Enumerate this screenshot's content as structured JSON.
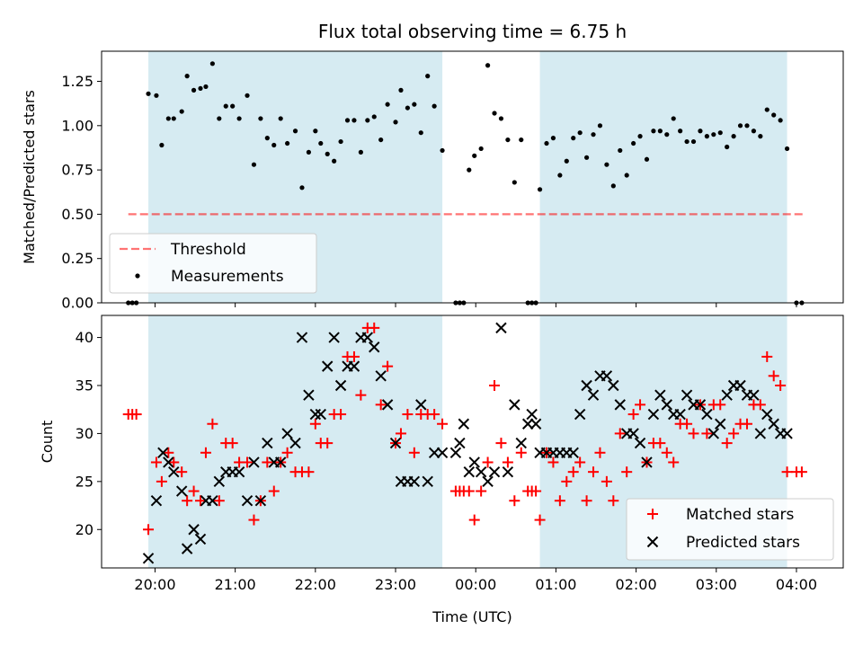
{
  "colors": {
    "shade": "#add8e6",
    "threshold": "#ff0000",
    "measurement": "#000000",
    "matched": "#ff0000",
    "predicted": "#000000",
    "frame": "#000000"
  },
  "chart_data": [
    {
      "type": "scatter",
      "title": "Flux total observing time = 6.75 h",
      "xlabel": "",
      "ylabel": "Matched/Predicted stars",
      "xlim": [
        "19:20",
        "04:35"
      ],
      "ylim": [
        0,
        1.42
      ],
      "yticks": [
        0.0,
        0.25,
        0.5,
        0.75,
        1.0,
        1.25
      ],
      "ytick_labels": [
        "0.00",
        "0.25",
        "0.50",
        "0.75",
        "1.00",
        "1.25"
      ],
      "shaded_intervals": [
        [
          "19:55",
          "23:35"
        ],
        [
          "00:48",
          "03:53"
        ]
      ],
      "legend": {
        "position": "lower left",
        "entries": [
          "Threshold",
          "Measurements"
        ]
      },
      "threshold": {
        "name": "Threshold",
        "y": 0.5,
        "x_start": "19:40",
        "x_end": "04:05"
      },
      "measurements": {
        "name": "Measurements",
        "x": [
          "19:40",
          "19:43",
          "19:46",
          "19:55",
          "20:01",
          "20:05",
          "20:10",
          "20:14",
          "20:20",
          "20:24",
          "20:29",
          "20:34",
          "20:38",
          "20:43",
          "20:48",
          "20:53",
          "20:58",
          "21:03",
          "21:09",
          "21:14",
          "21:19",
          "21:24",
          "21:29",
          "21:34",
          "21:39",
          "21:45",
          "21:50",
          "21:55",
          "22:00",
          "22:04",
          "22:09",
          "22:14",
          "22:19",
          "22:24",
          "22:29",
          "22:34",
          "22:39",
          "22:44",
          "22:49",
          "22:54",
          "23:00",
          "23:04",
          "23:09",
          "23:14",
          "23:19",
          "23:24",
          "23:29",
          "23:35",
          "23:45",
          "23:48",
          "23:51",
          "23:55",
          "23:59",
          "00:04",
          "00:09",
          "00:14",
          "00:19",
          "00:24",
          "00:29",
          "00:34",
          "00:39",
          "00:42",
          "00:45",
          "00:48",
          "00:53",
          "00:58",
          "01:03",
          "01:08",
          "01:13",
          "01:18",
          "01:23",
          "01:28",
          "01:33",
          "01:38",
          "01:43",
          "01:48",
          "01:53",
          "01:58",
          "02:03",
          "02:08",
          "02:13",
          "02:18",
          "02:23",
          "02:28",
          "02:33",
          "02:38",
          "02:43",
          "02:48",
          "02:53",
          "02:58",
          "03:03",
          "03:08",
          "03:13",
          "03:18",
          "03:23",
          "03:28",
          "03:33",
          "03:38",
          "03:43",
          "03:48",
          "03:53",
          "04:00",
          "04:04"
        ],
        "y": [
          0,
          0,
          0,
          1.18,
          1.17,
          0.89,
          1.04,
          1.04,
          1.08,
          1.28,
          1.2,
          1.21,
          1.22,
          1.35,
          1.04,
          1.11,
          1.11,
          1.04,
          1.17,
          0.78,
          1.04,
          0.93,
          0.89,
          1.04,
          0.9,
          0.97,
          0.65,
          0.85,
          0.97,
          0.9,
          0.84,
          0.8,
          0.91,
          1.03,
          1.03,
          0.85,
          1.03,
          1.05,
          0.92,
          1.12,
          1.02,
          1.2,
          1.1,
          1.12,
          0.96,
          1.28,
          1.11,
          0.86,
          0,
          0,
          0,
          0.75,
          0.83,
          0.87,
          1.34,
          1.07,
          1.04,
          0.92,
          0.68,
          0.92,
          0,
          0,
          0,
          0.64,
          0.9,
          0.93,
          0.72,
          0.8,
          0.93,
          0.96,
          0.82,
          0.95,
          1.0,
          0.78,
          0.66,
          0.86,
          0.72,
          0.9,
          0.94,
          0.81,
          0.97,
          0.97,
          0.95,
          1.04,
          0.97,
          0.91,
          0.91,
          0.97,
          0.94,
          0.95,
          0.96,
          0.88,
          0.94,
          1.0,
          1.0,
          0.97,
          0.94,
          1.09,
          1.06,
          1.03,
          0.87,
          0,
          0
        ]
      }
    },
    {
      "type": "scatter",
      "title": "",
      "xlabel": "Time (UTC)",
      "ylabel": "Count",
      "xlim": [
        "19:20",
        "04:35"
      ],
      "ylim": [
        16,
        42.3
      ],
      "yticks": [
        20,
        25,
        30,
        35,
        40
      ],
      "ytick_labels": [
        "20",
        "25",
        "30",
        "35",
        "40"
      ],
      "xticks": [
        "20:00",
        "21:00",
        "22:00",
        "23:00",
        "00:00",
        "01:00",
        "02:00",
        "03:00",
        "04:00"
      ],
      "shaded_intervals": [
        [
          "19:55",
          "23:35"
        ],
        [
          "00:48",
          "03:53"
        ]
      ],
      "legend": {
        "position": "lower right",
        "entries": [
          "Matched stars",
          "Predicted stars"
        ]
      },
      "series": [
        {
          "name": "Matched stars",
          "marker": "+",
          "x": [
            "19:40",
            "19:43",
            "19:46",
            "19:55",
            "20:01",
            "20:05",
            "20:10",
            "20:14",
            "20:20",
            "20:24",
            "20:29",
            "20:34",
            "20:38",
            "20:43",
            "20:48",
            "20:53",
            "20:58",
            "21:03",
            "21:09",
            "21:14",
            "21:19",
            "21:24",
            "21:29",
            "21:34",
            "21:39",
            "21:45",
            "21:50",
            "21:55",
            "22:00",
            "22:04",
            "22:09",
            "22:14",
            "22:19",
            "22:24",
            "22:29",
            "22:34",
            "22:39",
            "22:44",
            "22:49",
            "22:54",
            "23:00",
            "23:04",
            "23:09",
            "23:14",
            "23:19",
            "23:24",
            "23:29",
            "23:35",
            "23:45",
            "23:48",
            "23:51",
            "23:55",
            "23:59",
            "00:04",
            "00:09",
            "00:14",
            "00:19",
            "00:24",
            "00:29",
            "00:34",
            "00:39",
            "00:42",
            "00:45",
            "00:48",
            "00:53",
            "00:58",
            "01:03",
            "01:08",
            "01:13",
            "01:18",
            "01:23",
            "01:28",
            "01:33",
            "01:38",
            "01:43",
            "01:48",
            "01:53",
            "01:58",
            "02:03",
            "02:08",
            "02:13",
            "02:18",
            "02:23",
            "02:28",
            "02:33",
            "02:38",
            "02:43",
            "02:48",
            "02:53",
            "02:58",
            "03:03",
            "03:08",
            "03:13",
            "03:18",
            "03:23",
            "03:28",
            "03:33",
            "03:38",
            "03:43",
            "03:48",
            "03:53",
            "04:00",
            "04:04"
          ],
          "y": [
            32,
            32,
            32,
            20,
            27,
            25,
            28,
            27,
            26,
            23,
            24,
            23,
            28,
            31,
            23,
            29,
            29,
            27,
            27,
            21,
            23,
            27,
            24,
            27,
            28,
            26,
            26,
            26,
            31,
            29,
            29,
            32,
            32,
            38,
            38,
            34,
            41,
            41,
            33,
            37,
            29,
            30,
            32,
            28,
            32,
            32,
            32,
            31,
            24,
            24,
            24,
            24,
            21,
            24,
            27,
            35,
            29,
            27,
            23,
            28,
            24,
            24,
            24,
            21,
            28,
            27,
            23,
            25,
            26,
            27,
            23,
            26,
            28,
            25,
            23,
            30,
            26,
            32,
            33,
            27,
            29,
            29,
            28,
            27,
            31,
            31,
            30,
            33,
            30,
            33,
            33,
            29,
            30,
            31,
            31,
            33,
            33,
            38,
            36,
            35,
            26,
            26,
            26
          ]
        },
        {
          "name": "Predicted stars",
          "marker": "x",
          "x": [
            "19:55",
            "20:01",
            "20:06",
            "20:10",
            "20:14",
            "20:20",
            "20:24",
            "20:29",
            "20:34",
            "20:38",
            "20:43",
            "20:48",
            "20:53",
            "20:58",
            "21:03",
            "21:09",
            "21:14",
            "21:19",
            "21:24",
            "21:29",
            "21:34",
            "21:39",
            "21:45",
            "21:50",
            "21:55",
            "22:00",
            "22:04",
            "22:09",
            "22:14",
            "22:19",
            "22:24",
            "22:29",
            "22:34",
            "22:39",
            "22:44",
            "22:49",
            "22:54",
            "23:00",
            "23:04",
            "23:09",
            "23:14",
            "23:19",
            "23:24",
            "23:29",
            "23:35",
            "23:45",
            "23:48",
            "23:51",
            "23:55",
            "23:59",
            "00:04",
            "00:09",
            "00:14",
            "00:19",
            "00:24",
            "00:29",
            "00:34",
            "00:39",
            "00:42",
            "00:45",
            "00:48",
            "00:53",
            "00:58",
            "01:03",
            "01:08",
            "01:13",
            "01:18",
            "01:23",
            "01:28",
            "01:33",
            "01:38",
            "01:43",
            "01:48",
            "01:53",
            "01:58",
            "02:03",
            "02:08",
            "02:13",
            "02:18",
            "02:23",
            "02:28",
            "02:33",
            "02:38",
            "02:43",
            "02:48",
            "02:53",
            "02:58",
            "03:03",
            "03:08",
            "03:13",
            "03:18",
            "03:23",
            "03:28",
            "03:33",
            "03:38",
            "03:43",
            "03:48",
            "03:53"
          ],
          "y": [
            17,
            23,
            28,
            27,
            26,
            24,
            18,
            20,
            19,
            23,
            23,
            25,
            26,
            26,
            26,
            23,
            27,
            23,
            29,
            27,
            27,
            30,
            29,
            40,
            34,
            32,
            32,
            37,
            40,
            35,
            37,
            37,
            40,
            40,
            39,
            36,
            33,
            29,
            25,
            25,
            25,
            33,
            25,
            28,
            28,
            28,
            29,
            31,
            26,
            27,
            26,
            25,
            26,
            41,
            26,
            33,
            29,
            31,
            32,
            31,
            28,
            28,
            28,
            28,
            28,
            28,
            32,
            35,
            34,
            36,
            36,
            35,
            33,
            30,
            30,
            29,
            27,
            32,
            34,
            33,
            32,
            32,
            34,
            33,
            33,
            32,
            30,
            31,
            34,
            35,
            35,
            34,
            34,
            30,
            32,
            31,
            30,
            30
          ]
        }
      ]
    }
  ]
}
